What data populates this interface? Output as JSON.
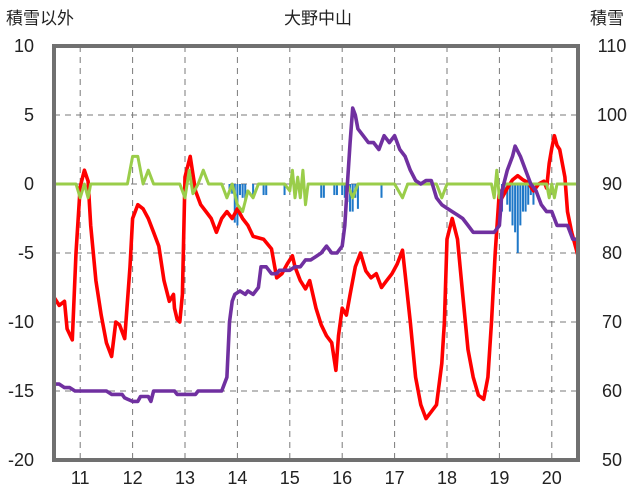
{
  "chart_data": {
    "type": "line",
    "title": "大野中山",
    "y_left_label": "積雪以外",
    "y_right_label": "積雪",
    "y_left_range": [
      -20,
      10
    ],
    "y_right_range": [
      50,
      110
    ],
    "y_left_ticks": [
      "10",
      "5",
      "0",
      "-5",
      "-10",
      "-15",
      "-20"
    ],
    "y_right_ticks": [
      "110",
      "100",
      "90",
      "80",
      "70",
      "60",
      "50"
    ],
    "x_range": [
      10.5,
      20.5
    ],
    "x_ticks": [
      "11",
      "12",
      "13",
      "14",
      "15",
      "16",
      "17",
      "18",
      "19",
      "20"
    ],
    "grid": true,
    "series": [
      {
        "color": "#ff0000",
        "axis": "left",
        "points": [
          [
            10.5,
            -8.2
          ],
          [
            10.6,
            -8.8
          ],
          [
            10.7,
            -8.5
          ],
          [
            10.75,
            -10.5
          ],
          [
            10.85,
            -11.3
          ],
          [
            10.92,
            -5
          ],
          [
            11.0,
            -0.2
          ],
          [
            11.08,
            1.0
          ],
          [
            11.15,
            0.2
          ],
          [
            11.2,
            -3
          ],
          [
            11.3,
            -7
          ],
          [
            11.4,
            -9.5
          ],
          [
            11.5,
            -11.5
          ],
          [
            11.6,
            -12.5
          ],
          [
            11.68,
            -10
          ],
          [
            11.75,
            -10.2
          ],
          [
            11.85,
            -11.2
          ],
          [
            11.95,
            -6
          ],
          [
            12.0,
            -2.5
          ],
          [
            12.1,
            -1.5
          ],
          [
            12.2,
            -1.8
          ],
          [
            12.3,
            -2.5
          ],
          [
            12.4,
            -3.5
          ],
          [
            12.5,
            -4.5
          ],
          [
            12.6,
            -7
          ],
          [
            12.7,
            -8.5
          ],
          [
            12.78,
            -8.0
          ],
          [
            12.8,
            -9
          ],
          [
            12.85,
            -9.8
          ],
          [
            12.9,
            -10
          ],
          [
            12.95,
            -8
          ],
          [
            13.0,
            0.5
          ],
          [
            13.1,
            2.0
          ],
          [
            13.2,
            -0.5
          ],
          [
            13.3,
            -1.5
          ],
          [
            13.4,
            -2
          ],
          [
            13.5,
            -2.5
          ],
          [
            13.6,
            -3.5
          ],
          [
            13.7,
            -2.5
          ],
          [
            13.8,
            -2.0
          ],
          [
            13.9,
            -2.5
          ],
          [
            14.0,
            -1.8
          ],
          [
            14.1,
            -2.5
          ],
          [
            14.2,
            -3.0
          ],
          [
            14.3,
            -3.8
          ],
          [
            14.5,
            -4.0
          ],
          [
            14.65,
            -4.7
          ],
          [
            14.75,
            -6.8
          ],
          [
            14.85,
            -6.5
          ],
          [
            14.95,
            -5.8
          ],
          [
            15.05,
            -5.2
          ],
          [
            15.1,
            -6.0
          ],
          [
            15.2,
            -7.0
          ],
          [
            15.3,
            -7.6
          ],
          [
            15.38,
            -7.0
          ],
          [
            15.5,
            -9.0
          ],
          [
            15.6,
            -10.2
          ],
          [
            15.7,
            -11.0
          ],
          [
            15.8,
            -11.5
          ],
          [
            15.88,
            -13.5
          ],
          [
            15.93,
            -11
          ],
          [
            16.0,
            -9.0
          ],
          [
            16.08,
            -9.5
          ],
          [
            16.15,
            -8.0
          ],
          [
            16.25,
            -6.0
          ],
          [
            16.35,
            -5.0
          ],
          [
            16.45,
            -6.3
          ],
          [
            16.55,
            -6.8
          ],
          [
            16.65,
            -6.5
          ],
          [
            16.75,
            -7.5
          ],
          [
            16.85,
            -7.0
          ],
          [
            16.95,
            -6.5
          ],
          [
            17.05,
            -5.8
          ],
          [
            17.15,
            -4.8
          ],
          [
            17.2,
            -6.5
          ],
          [
            17.3,
            -10
          ],
          [
            17.4,
            -14
          ],
          [
            17.5,
            -16
          ],
          [
            17.6,
            -17
          ],
          [
            17.7,
            -16.5
          ],
          [
            17.8,
            -16
          ],
          [
            17.9,
            -13
          ],
          [
            17.95,
            -10
          ],
          [
            18.0,
            -4.0
          ],
          [
            18.1,
            -2.5
          ],
          [
            18.2,
            -4
          ],
          [
            18.3,
            -8
          ],
          [
            18.4,
            -12
          ],
          [
            18.5,
            -14
          ],
          [
            18.6,
            -15.3
          ],
          [
            18.7,
            -15.6
          ],
          [
            18.78,
            -14
          ],
          [
            18.85,
            -10
          ],
          [
            18.92,
            -5
          ],
          [
            19.0,
            -0.5
          ],
          [
            19.05,
            -1
          ],
          [
            19.15,
            -0.3
          ],
          [
            19.25,
            0.3
          ],
          [
            19.35,
            0.6
          ],
          [
            19.45,
            0.3
          ],
          [
            19.55,
            0.1
          ],
          [
            19.65,
            -0.5
          ],
          [
            19.75,
            0.0
          ],
          [
            19.85,
            0.2
          ],
          [
            19.9,
            -0.3
          ],
          [
            19.95,
            1.5
          ],
          [
            20.0,
            2.6
          ],
          [
            20.05,
            3.5
          ],
          [
            20.1,
            2.8
          ],
          [
            20.15,
            2.5
          ],
          [
            20.25,
            0.5
          ],
          [
            20.3,
            -2
          ],
          [
            20.38,
            -3.5
          ],
          [
            20.45,
            -4.5
          ],
          [
            20.5,
            -5.2
          ]
        ]
      },
      {
        "color": "#9acd4a",
        "axis": "left",
        "points": [
          [
            10.5,
            0
          ],
          [
            10.92,
            0
          ],
          [
            11.0,
            -1
          ],
          [
            11.08,
            0
          ],
          [
            11.15,
            -1
          ],
          [
            11.2,
            0
          ],
          [
            11.9,
            0
          ],
          [
            12.0,
            2
          ],
          [
            12.1,
            2
          ],
          [
            12.2,
            0
          ],
          [
            12.3,
            1
          ],
          [
            12.4,
            0
          ],
          [
            12.9,
            0
          ],
          [
            13.0,
            -1
          ],
          [
            13.08,
            1
          ],
          [
            13.15,
            -0.7
          ],
          [
            13.25,
            0
          ],
          [
            13.35,
            1
          ],
          [
            13.45,
            0
          ],
          [
            13.7,
            0
          ],
          [
            13.8,
            -1
          ],
          [
            13.9,
            0
          ],
          [
            14.0,
            -1.5
          ],
          [
            14.1,
            -2
          ],
          [
            14.2,
            -0.5
          ],
          [
            14.3,
            -1
          ],
          [
            14.4,
            0
          ],
          [
            14.9,
            0
          ],
          [
            15.0,
            -0.5
          ],
          [
            15.05,
            1
          ],
          [
            15.1,
            -1
          ],
          [
            15.15,
            0.5
          ],
          [
            15.2,
            -1
          ],
          [
            15.25,
            1
          ],
          [
            15.3,
            -1.5
          ],
          [
            15.35,
            0
          ],
          [
            16.1,
            0
          ],
          [
            16.2,
            -1
          ],
          [
            16.3,
            0
          ],
          [
            17.0,
            0
          ],
          [
            17.15,
            -1
          ],
          [
            17.25,
            0
          ],
          [
            17.8,
            0
          ],
          [
            17.9,
            -1
          ],
          [
            18.0,
            0
          ],
          [
            18.85,
            0
          ],
          [
            18.9,
            -1
          ],
          [
            18.95,
            1
          ],
          [
            19.0,
            -1
          ],
          [
            19.1,
            0
          ],
          [
            19.9,
            0
          ],
          [
            19.95,
            -1
          ],
          [
            20.0,
            0
          ],
          [
            20.05,
            -1
          ],
          [
            20.1,
            0
          ],
          [
            20.5,
            0
          ]
        ]
      },
      {
        "color": "#7030a0",
        "axis": "right",
        "points": [
          [
            10.5,
            61
          ],
          [
            10.6,
            61
          ],
          [
            10.7,
            60.5
          ],
          [
            10.8,
            60.5
          ],
          [
            10.9,
            60
          ],
          [
            11.5,
            60
          ],
          [
            11.6,
            59.5
          ],
          [
            11.8,
            59.5
          ],
          [
            11.85,
            59
          ],
          [
            12.0,
            58.5
          ],
          [
            12.1,
            58.5
          ],
          [
            12.15,
            59.2
          ],
          [
            12.3,
            59.2
          ],
          [
            12.35,
            58.5
          ],
          [
            12.4,
            60
          ],
          [
            12.8,
            60
          ],
          [
            12.85,
            59.5
          ],
          [
            13.2,
            59.5
          ],
          [
            13.25,
            60
          ],
          [
            13.7,
            60
          ],
          [
            13.8,
            62
          ],
          [
            13.85,
            70
          ],
          [
            13.9,
            73
          ],
          [
            13.95,
            74
          ],
          [
            14.05,
            74.5
          ],
          [
            14.15,
            74
          ],
          [
            14.2,
            74.5
          ],
          [
            14.3,
            74
          ],
          [
            14.4,
            75
          ],
          [
            14.45,
            78
          ],
          [
            14.55,
            78
          ],
          [
            14.65,
            77
          ],
          [
            14.75,
            77
          ],
          [
            14.8,
            77.5
          ],
          [
            15.0,
            77.5
          ],
          [
            15.1,
            78
          ],
          [
            15.2,
            78
          ],
          [
            15.3,
            79
          ],
          [
            15.4,
            79
          ],
          [
            15.5,
            79.5
          ],
          [
            15.6,
            80
          ],
          [
            15.7,
            81
          ],
          [
            15.8,
            80
          ],
          [
            15.9,
            80
          ],
          [
            16.0,
            81
          ],
          [
            16.05,
            84
          ],
          [
            16.1,
            90
          ],
          [
            16.15,
            96
          ],
          [
            16.2,
            101
          ],
          [
            16.25,
            100
          ],
          [
            16.3,
            98
          ],
          [
            16.4,
            97
          ],
          [
            16.5,
            96
          ],
          [
            16.6,
            96
          ],
          [
            16.7,
            95
          ],
          [
            16.8,
            97
          ],
          [
            16.9,
            96
          ],
          [
            17.0,
            97
          ],
          [
            17.1,
            95
          ],
          [
            17.2,
            94
          ],
          [
            17.3,
            92
          ],
          [
            17.4,
            90.5
          ],
          [
            17.5,
            90
          ],
          [
            17.6,
            90.5
          ],
          [
            17.7,
            90.5
          ],
          [
            17.8,
            88
          ],
          [
            17.9,
            87
          ],
          [
            18.0,
            86.5
          ],
          [
            18.1,
            86
          ],
          [
            18.2,
            85.5
          ],
          [
            18.3,
            85
          ],
          [
            18.4,
            84
          ],
          [
            18.5,
            83
          ],
          [
            18.6,
            83
          ],
          [
            18.7,
            83
          ],
          [
            18.8,
            83
          ],
          [
            18.9,
            83
          ],
          [
            19.0,
            84
          ],
          [
            19.05,
            89
          ],
          [
            19.15,
            92
          ],
          [
            19.25,
            94
          ],
          [
            19.3,
            95.5
          ],
          [
            19.4,
            94
          ],
          [
            19.5,
            92
          ],
          [
            19.6,
            90
          ],
          [
            19.7,
            89
          ],
          [
            19.8,
            87
          ],
          [
            19.9,
            86
          ],
          [
            20.0,
            86
          ],
          [
            20.1,
            84
          ],
          [
            20.2,
            84
          ],
          [
            20.3,
            84
          ],
          [
            20.4,
            82
          ],
          [
            20.5,
            82
          ]
        ]
      },
      {
        "type": "bar",
        "color": "#1f78c8",
        "axis": "left",
        "bars": [
          [
            13.85,
            -0.7
          ],
          [
            13.9,
            -0.7
          ],
          [
            13.95,
            -2.8
          ],
          [
            14.0,
            -3
          ],
          [
            14.05,
            -0.8
          ],
          [
            14.1,
            -1
          ],
          [
            14.15,
            -1.3
          ],
          [
            14.3,
            -0.8
          ],
          [
            14.5,
            -0.8
          ],
          [
            14.55,
            -0.8
          ],
          [
            14.9,
            -0.8
          ],
          [
            15.6,
            -1
          ],
          [
            15.65,
            -1
          ],
          [
            15.85,
            -0.8
          ],
          [
            15.9,
            -0.8
          ],
          [
            16.0,
            -0.8
          ],
          [
            16.05,
            -1
          ],
          [
            16.1,
            -1.3
          ],
          [
            16.15,
            -2
          ],
          [
            16.2,
            -2
          ],
          [
            16.25,
            -1
          ],
          [
            16.3,
            -1.8
          ],
          [
            16.75,
            -1
          ],
          [
            19.05,
            -2
          ],
          [
            19.1,
            -0.8
          ],
          [
            19.15,
            -1.5
          ],
          [
            19.2,
            -2
          ],
          [
            19.25,
            -3
          ],
          [
            19.3,
            -3.5
          ],
          [
            19.35,
            -5
          ],
          [
            19.4,
            -3
          ],
          [
            19.45,
            -2
          ],
          [
            19.5,
            -2
          ],
          [
            19.55,
            -1.5
          ],
          [
            19.6,
            -0.8
          ],
          [
            19.65,
            -1.5
          ]
        ]
      }
    ]
  }
}
